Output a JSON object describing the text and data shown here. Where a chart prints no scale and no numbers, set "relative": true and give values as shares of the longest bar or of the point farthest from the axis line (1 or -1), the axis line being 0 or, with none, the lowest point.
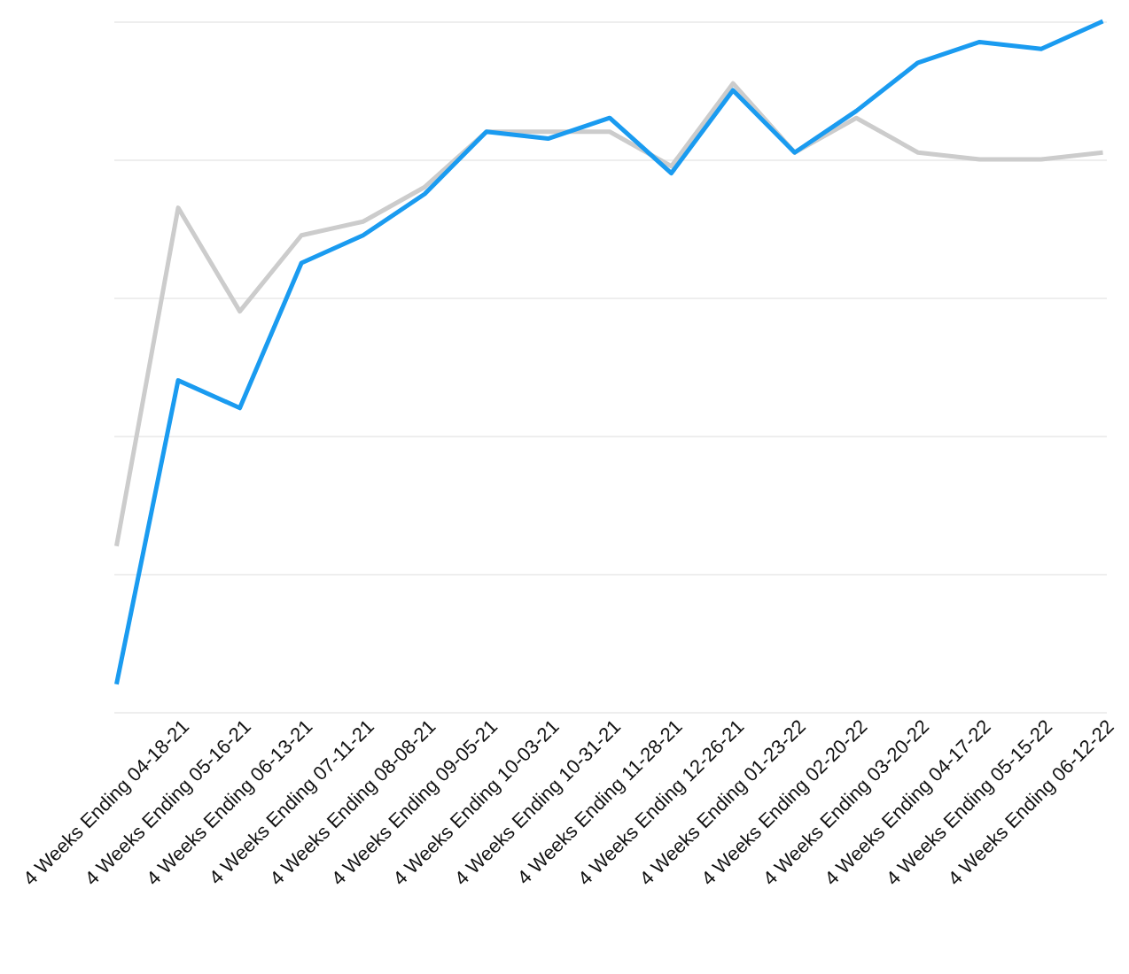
{
  "chart_data": {
    "type": "line",
    "relative": true,
    "grid": "y",
    "legend": false,
    "marker": "none",
    "line_style": "solid",
    "categories": [
      null,
      "4 Weeks Ending 04-18-21",
      "4 Weeks Ending 05-16-21",
      "4 Weeks Ending 06-13-21",
      "4 Weeks Ending 07-11-21",
      "4 Weeks Ending 08-08-21",
      "4 Weeks Ending 09-05-21",
      "4 Weeks Ending 10-03-21",
      "4 Weeks Ending 10-31-21",
      "4 Weeks Ending 11-28-21",
      "4 Weeks Ending 12-26-21",
      "4 Weeks Ending 01-23-22",
      "4 Weeks Ending 02-20-22",
      "4 Weeks Ending 03-20-22",
      "4 Weeks Ending 04-17-22",
      "4 Weeks Ending 05-15-22",
      "4 Weeks Ending 06-12-22"
    ],
    "series": [
      {
        "color": "#cccccc",
        "values": [
          0.24,
          0.73,
          0.58,
          0.69,
          0.71,
          0.76,
          0.84,
          0.84,
          0.84,
          0.79,
          0.91,
          0.81,
          0.86,
          0.81,
          0.8,
          0.8,
          0.81
        ]
      },
      {
        "color": "#1a9bf0",
        "values": [
          0.04,
          0.48,
          0.44,
          0.65,
          0.69,
          0.75,
          0.84,
          0.83,
          0.86,
          0.78,
          0.9,
          0.81,
          0.87,
          0.94,
          0.97,
          0.96,
          1
        ]
      }
    ]
  }
}
